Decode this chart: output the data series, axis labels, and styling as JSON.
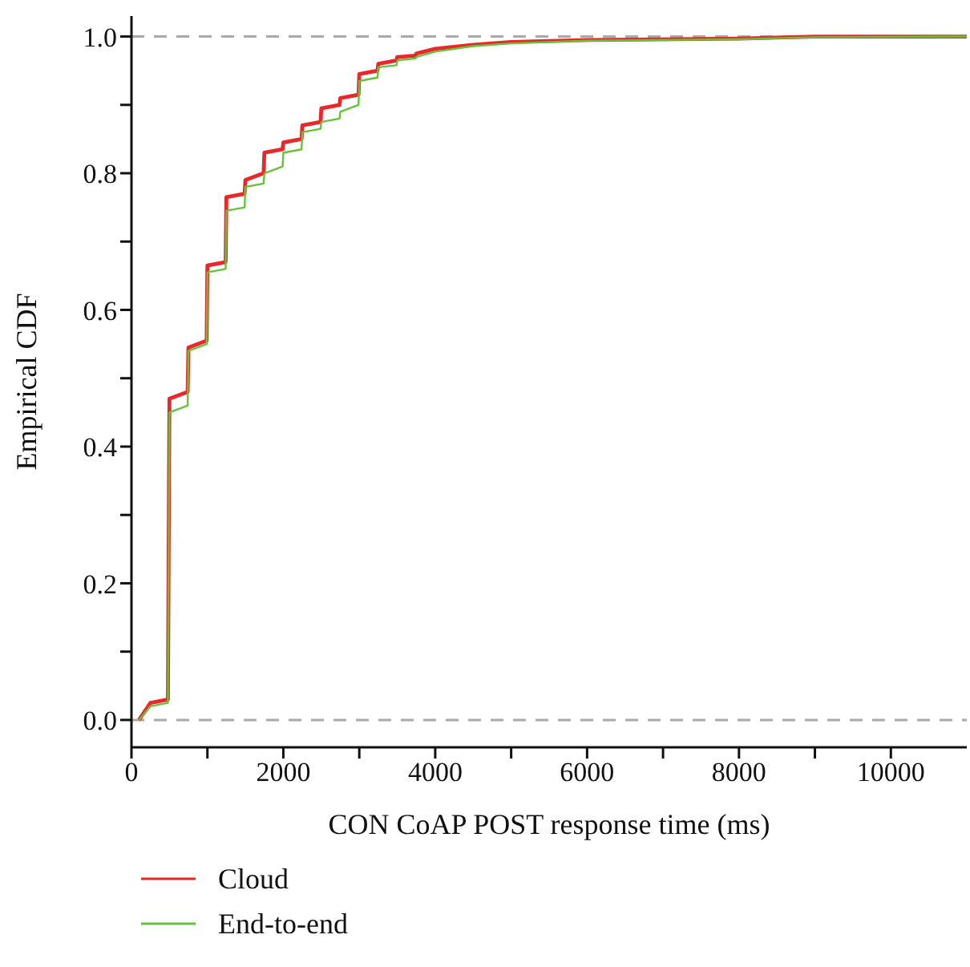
{
  "chart_data": {
    "type": "line",
    "xlabel": "CON CoAP POST response time (ms)",
    "ylabel": "Empirical CDF",
    "xlim": [
      0,
      11000
    ],
    "xticks": [
      0,
      {
        "value": 1000,
        "label": null
      },
      2000,
      {
        "value": 3000,
        "label": null
      },
      4000,
      {
        "value": 5000,
        "label": null
      },
      6000,
      {
        "value": 7000,
        "label": null
      },
      8000,
      {
        "value": 9000,
        "label": null
      },
      10000
    ],
    "ylim": [
      -0.04,
      1.03
    ],
    "yticks": [
      {
        "value": 0,
        "label": "0.0"
      },
      {
        "value": 0.1,
        "label": null
      },
      {
        "value": 0.2,
        "label": "0.2"
      },
      {
        "value": 0.3,
        "label": null
      },
      {
        "value": 0.4,
        "label": "0.4"
      },
      {
        "value": 0.5,
        "label": null
      },
      {
        "value": 0.6,
        "label": "0.6"
      },
      {
        "value": 0.7,
        "label": null
      },
      {
        "value": 0.8,
        "label": "0.8"
      },
      {
        "value": 0.9,
        "label": null
      },
      {
        "value": 1,
        "label": "1.0"
      }
    ],
    "grid": false,
    "legend": "bottom left",
    "marker": "none",
    "line_style": "solid",
    "ref_lines": [
      {
        "axis": "y",
        "value": 0,
        "color": "#aaaaaa",
        "line_style": "dashed"
      },
      {
        "axis": "y",
        "value": 1,
        "color": "#aaaaaa",
        "line_style": "dashed"
      }
    ],
    "series": [
      {
        "name": "Cloud",
        "color": "#e8282a",
        "x": [
          100,
          250,
          480,
          500,
          740,
          750,
          990,
          1000,
          1240,
          1250,
          1490,
          1500,
          1740,
          1750,
          1990,
          2000,
          2240,
          2250,
          2490,
          2500,
          2740,
          2750,
          2990,
          3000,
          3240,
          3250,
          3490,
          3500,
          3740,
          3750,
          4000,
          4500,
          5000,
          6000,
          8000,
          9000,
          11000
        ],
        "values": [
          0,
          0.025,
          0.03,
          0.47,
          0.48,
          0.545,
          0.555,
          0.665,
          0.67,
          0.765,
          0.77,
          0.79,
          0.8,
          0.83,
          0.835,
          0.845,
          0.85,
          0.87,
          0.875,
          0.895,
          0.9,
          0.91,
          0.915,
          0.945,
          0.95,
          0.96,
          0.965,
          0.97,
          0.972,
          0.975,
          0.982,
          0.988,
          0.992,
          0.995,
          0.997,
          1,
          1
        ]
      },
      {
        "name": "End-to-end",
        "color": "#66c23a",
        "x": [
          100,
          250,
          480,
          500,
          740,
          750,
          990,
          1000,
          1240,
          1250,
          1490,
          1500,
          1740,
          1750,
          1990,
          2000,
          2240,
          2250,
          2490,
          2500,
          2740,
          2750,
          2990,
          3000,
          3240,
          3250,
          3490,
          3500,
          3740,
          3750,
          4000,
          4500,
          5000,
          6000,
          8000,
          9000,
          11000
        ],
        "values": [
          0,
          0.02,
          0.025,
          0.45,
          0.46,
          0.54,
          0.55,
          0.655,
          0.66,
          0.745,
          0.75,
          0.78,
          0.785,
          0.8,
          0.81,
          0.83,
          0.835,
          0.86,
          0.865,
          0.875,
          0.88,
          0.89,
          0.9,
          0.935,
          0.94,
          0.955,
          0.958,
          0.965,
          0.968,
          0.97,
          0.978,
          0.986,
          0.99,
          0.994,
          0.996,
          0.999,
          1
        ]
      }
    ]
  }
}
